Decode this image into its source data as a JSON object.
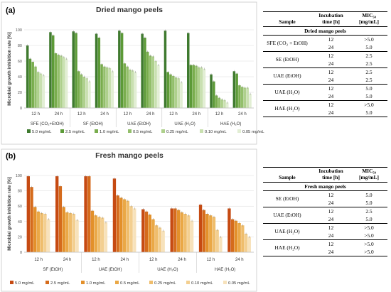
{
  "chart_data": [
    {
      "type": "bar",
      "panel_label": "(a)",
      "title": "Dried mango peels",
      "ylabel": "Microbial growth inhibition rate [%]",
      "ylim": [
        0,
        100
      ],
      "yticks": [
        0,
        20,
        40,
        60,
        80,
        100
      ],
      "categories": [
        "12 h",
        "24 h",
        "12 h",
        "24 h",
        "12 h",
        "24 h",
        "12 h",
        "24 h",
        "12 h",
        "24 h"
      ],
      "groups": [
        "SFE (CO₂+EtOH)",
        "SF (EtOH)",
        "UAE (EtOH)",
        "UAE (H₂O)",
        "HAE (H₂O)"
      ],
      "series": [
        {
          "name": "5.0 mg/mL",
          "values": [
            80,
            97,
            98,
            95,
            99,
            95,
            99,
            96,
            43,
            47
          ]
        },
        {
          "name": "2.5 mg/mL",
          "values": [
            63,
            93,
            96,
            90,
            96,
            90,
            46,
            55,
            34,
            44
          ]
        },
        {
          "name": "1.0 mg/mL",
          "values": [
            59,
            70,
            47,
            56,
            57,
            72,
            43,
            55,
            16,
            29
          ]
        },
        {
          "name": "0.5 mg/mL",
          "values": [
            53,
            68,
            43,
            53,
            53,
            67,
            41,
            54,
            13,
            27
          ]
        },
        {
          "name": "0.25 mg/mL",
          "values": [
            46,
            67,
            40,
            52,
            49,
            66,
            39,
            52,
            11,
            26
          ]
        },
        {
          "name": "0.10 mg/mL",
          "values": [
            44,
            65,
            38,
            51,
            48,
            60,
            38,
            52,
            10,
            26
          ]
        },
        {
          "name": "0.05 mg/mL",
          "values": [
            42,
            63,
            34,
            47,
            46,
            55,
            33,
            50,
            7,
            18
          ]
        }
      ],
      "colors": [
        "#3f7a2f",
        "#5c9a37",
        "#79ad4d",
        "#93bf6b",
        "#aed08c",
        "#c9e0b0",
        "#e2eed4"
      ]
    },
    {
      "type": "bar",
      "panel_label": "(b)",
      "title": "Fresh mango peels",
      "ylabel": "Microbial growth inhibition rate [%]",
      "ylim": [
        0,
        100
      ],
      "yticks": [
        0,
        20,
        40,
        60,
        80,
        100
      ],
      "categories": [
        "12 h",
        "24 h",
        "12 h",
        "24 h",
        "12 h",
        "24 h",
        "12 h",
        "24 h"
      ],
      "groups": [
        "SF (EtOH)",
        "UAE (EtOH)",
        "UAE (H₂O)",
        "HAE (H₂O)"
      ],
      "series": [
        {
          "name": "5.0 mg/mL",
          "values": [
            99,
            99,
            99,
            96,
            56,
            57,
            62,
            57
          ]
        },
        {
          "name": "2.5 mg/mL",
          "values": [
            85,
            86,
            99,
            74,
            53,
            57,
            55,
            43
          ]
        },
        {
          "name": "1.0 mg/mL",
          "values": [
            59,
            59,
            54,
            71,
            49,
            55,
            50,
            41
          ]
        },
        {
          "name": "0.5 mg/mL",
          "values": [
            53,
            52,
            48,
            69,
            43,
            52,
            48,
            38
          ]
        },
        {
          "name": "0.25 mg/mL",
          "values": [
            51,
            51,
            46,
            67,
            35,
            50,
            46,
            35
          ]
        },
        {
          "name": "0.10 mg/mL",
          "values": [
            50,
            50,
            45,
            60,
            32,
            48,
            29,
            24
          ]
        },
        {
          "name": "0.05 mg/mL",
          "values": [
            43,
            42,
            39,
            57,
            28,
            41,
            20,
            20
          ]
        }
      ],
      "colors": [
        "#c64a12",
        "#d56b1c",
        "#e3902a",
        "#eaa846",
        "#efbd6c",
        "#f3cf90",
        "#f7e2bb"
      ]
    }
  ],
  "tables": {
    "dried": {
      "col_sample": "Sample",
      "col_time_1": "Incubation",
      "col_time_2": "time [h]",
      "col_mic_1": "MIC₅₀",
      "col_mic_2": "[mg/mL]",
      "section": "Dried mango peels",
      "groups": [
        {
          "sample": "SFE (CO₂ + EtOH)",
          "rows": [
            {
              "time": "12",
              "mic": ">5.0"
            },
            {
              "time": "24",
              "mic": "5.0"
            }
          ]
        },
        {
          "sample": "SE (EtOH)",
          "rows": [
            {
              "time": "12",
              "mic": "2.5"
            },
            {
              "time": "24",
              "mic": "2.5"
            }
          ]
        },
        {
          "sample": "UAE (EtOH)",
          "rows": [
            {
              "time": "12",
              "mic": "2.5"
            },
            {
              "time": "24",
              "mic": "2.5"
            }
          ]
        },
        {
          "sample": "UAE (H₂O)",
          "rows": [
            {
              "time": "12",
              "mic": "5.0"
            },
            {
              "time": "24",
              "mic": "5.0"
            }
          ]
        },
        {
          "sample": "HAE (H₂O)",
          "rows": [
            {
              "time": "12",
              "mic": ">5.0"
            },
            {
              "time": "24",
              "mic": "5.0"
            }
          ]
        }
      ]
    },
    "fresh": {
      "col_sample": "Sample",
      "col_time_1": "Incubation",
      "col_time_2": "time [h]",
      "col_mic_1": "MIC₅₀",
      "col_mic_2": "[mg/mL]",
      "section": "Fresh mango peels",
      "groups": [
        {
          "sample": "SE (EtOH)",
          "rows": [
            {
              "time": "12",
              "mic": "5.0"
            },
            {
              "time": "24",
              "mic": "5.0"
            }
          ]
        },
        {
          "sample": "UAE (EtOH)",
          "rows": [
            {
              "time": "12",
              "mic": "2.5"
            },
            {
              "time": "24",
              "mic": "5.0"
            }
          ]
        },
        {
          "sample": "UAE (H₂O)",
          "rows": [
            {
              "time": "12",
              "mic": ">5.0"
            },
            {
              "time": "24",
              "mic": ">5.0"
            }
          ]
        },
        {
          "sample": "HAE (H₂O)",
          "rows": [
            {
              "time": "12",
              "mic": ">5.0"
            },
            {
              "time": "24",
              "mic": ">5.0"
            }
          ]
        }
      ]
    }
  }
}
